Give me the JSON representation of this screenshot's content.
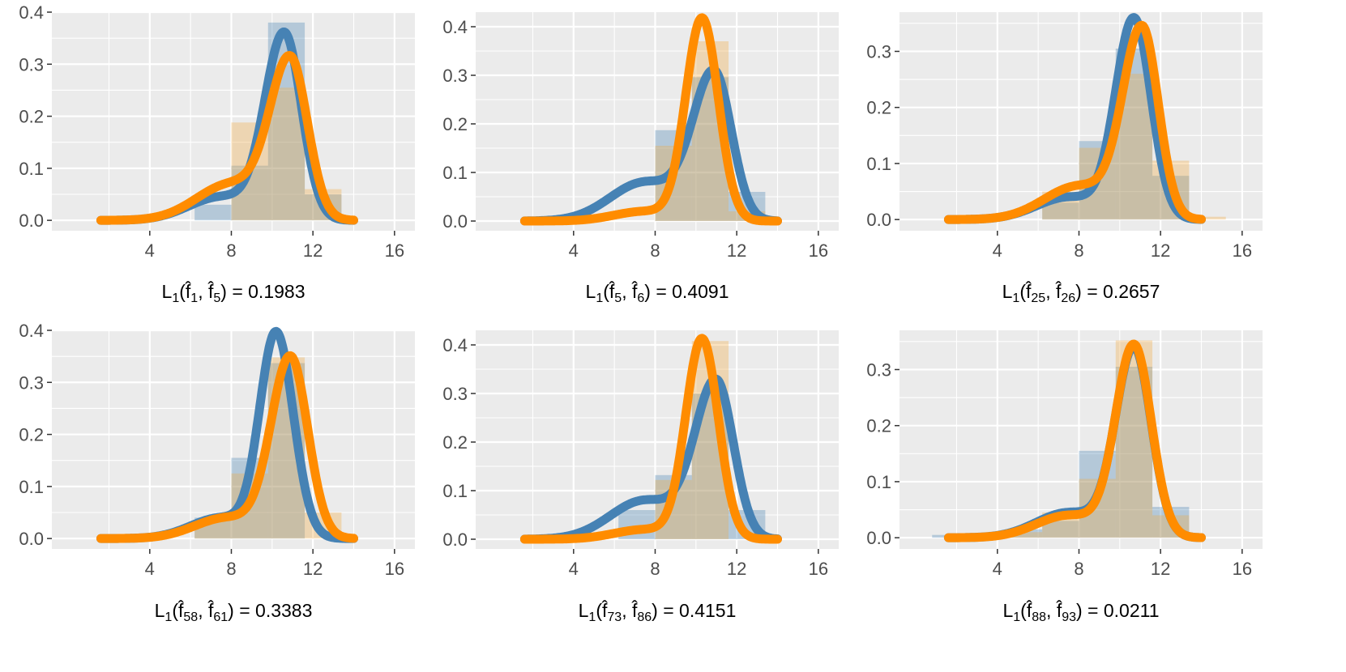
{
  "colors": {
    "blue": "#4682b4",
    "orange": "#ff8c00",
    "blue_fill": "#4682b4",
    "orange_fill": "#f4a940",
    "panel_bg": "#ebebeb",
    "grid": "#ffffff"
  },
  "chart_data": [
    {
      "type": "histogram+density",
      "xlim": [
        -0.8,
        17
      ],
      "ylim": [
        -0.02,
        0.4
      ],
      "xticks": [
        "4",
        "8",
        "12",
        "16"
      ],
      "xtick_values": [
        4,
        8,
        12,
        16
      ],
      "yticks": [
        "0.0",
        "0.1",
        "0.2",
        "0.3",
        "0.4"
      ],
      "ytick_values": [
        0,
        0.1,
        0.2,
        0.3,
        0.4
      ],
      "caption": {
        "prefix": "L",
        "prefix_sub": "1",
        "a": "f",
        "a_sub": "1",
        "b": "f",
        "b_sub": "5",
        "value": "0.1983"
      },
      "bins": [
        6.2,
        8.0,
        9.8,
        11.6,
        13.4
      ],
      "series": [
        {
          "name": "blue",
          "heights": [
            0.03,
            0.105,
            0.38,
            0.05
          ],
          "density": {
            "mode": 10.6,
            "peak": 0.355,
            "sd_left": 0.95,
            "sd_right": 0.85,
            "tail_weight": 0.045,
            "tail_mean": 7.5,
            "tail_sd": 1.6
          }
        },
        {
          "name": "orange",
          "heights": [
            0.0,
            0.188,
            0.255,
            0.06
          ],
          "density": {
            "mode": 10.9,
            "peak": 0.3,
            "sd_left": 1.0,
            "sd_right": 0.85,
            "tail_weight": 0.07,
            "tail_mean": 8.0,
            "tail_sd": 1.7
          }
        }
      ]
    },
    {
      "type": "histogram+density",
      "xlim": [
        -0.8,
        17
      ],
      "ylim": [
        -0.02,
        0.43
      ],
      "xticks": [
        "4",
        "8",
        "12",
        "16"
      ],
      "xtick_values": [
        4,
        8,
        12,
        16
      ],
      "yticks": [
        "0.0",
        "0.1",
        "0.2",
        "0.3",
        "0.4"
      ],
      "ytick_values": [
        0,
        0.1,
        0.2,
        0.3,
        0.4
      ],
      "caption": {
        "prefix": "L",
        "prefix_sub": "1",
        "a": "f",
        "a_sub": "5",
        "b": "f",
        "b_sub": "6",
        "value": "0.4091"
      },
      "bins": [
        6.2,
        8.0,
        9.8,
        11.6,
        13.4
      ],
      "series": [
        {
          "name": "blue",
          "heights": [
            0.0,
            0.187,
            0.296,
            0.06
          ],
          "density": {
            "mode": 10.9,
            "peak": 0.3,
            "sd_left": 1.05,
            "sd_right": 0.85,
            "tail_weight": 0.08,
            "tail_mean": 7.5,
            "tail_sd": 1.7
          }
        },
        {
          "name": "orange",
          "heights": [
            0.0,
            0.155,
            0.37,
            0.02
          ],
          "density": {
            "mode": 10.3,
            "peak": 0.415,
            "sd_left": 0.8,
            "sd_right": 0.8,
            "tail_weight": 0.02,
            "tail_mean": 7.5,
            "tail_sd": 1.5
          }
        }
      ]
    },
    {
      "type": "histogram+density",
      "xlim": [
        -0.8,
        17
      ],
      "ylim": [
        -0.02,
        0.37
      ],
      "xticks": [
        "4",
        "8",
        "12",
        "16"
      ],
      "xtick_values": [
        4,
        8,
        12,
        16
      ],
      "yticks": [
        "0.0",
        "0.1",
        "0.2",
        "0.3"
      ],
      "ytick_values": [
        0,
        0.1,
        0.2,
        0.3
      ],
      "caption": {
        "prefix": "L",
        "prefix_sub": "1",
        "a": "f",
        "a_sub": "25",
        "b": "f",
        "b_sub": "26",
        "value": "0.2657"
      },
      "bins": [
        6.2,
        8.0,
        9.8,
        11.6,
        13.4,
        15.2
      ],
      "series": [
        {
          "name": "blue",
          "heights": [
            0.03,
            0.14,
            0.305,
            0.078,
            0.0
          ],
          "density": {
            "mode": 10.7,
            "peak": 0.355,
            "sd_left": 0.9,
            "sd_right": 0.85,
            "tail_weight": 0.04,
            "tail_mean": 7.5,
            "tail_sd": 1.6
          }
        },
        {
          "name": "orange",
          "heights": [
            0.05,
            0.128,
            0.26,
            0.105,
            0.005
          ],
          "density": {
            "mode": 11.1,
            "peak": 0.335,
            "sd_left": 0.95,
            "sd_right": 0.8,
            "tail_weight": 0.06,
            "tail_mean": 8.0,
            "tail_sd": 1.7
          }
        }
      ]
    },
    {
      "type": "histogram+density",
      "xlim": [
        -0.8,
        17
      ],
      "ylim": [
        -0.02,
        0.4
      ],
      "xticks": [
        "4",
        "8",
        "12",
        "16"
      ],
      "xtick_values": [
        4,
        8,
        12,
        16
      ],
      "yticks": [
        "0.0",
        "0.1",
        "0.2",
        "0.3",
        "0.4"
      ],
      "ytick_values": [
        0,
        0.1,
        0.2,
        0.3,
        0.4
      ],
      "caption": {
        "prefix": "L",
        "prefix_sub": "1",
        "a": "f",
        "a_sub": "58",
        "b": "f",
        "b_sub": "61",
        "value": "0.3383"
      },
      "bins": [
        6.2,
        8.0,
        9.8,
        11.6,
        13.4
      ],
      "series": [
        {
          "name": "blue",
          "heights": [
            0.04,
            0.155,
            0.337,
            0.0
          ],
          "density": {
            "mode": 10.2,
            "peak": 0.39,
            "sd_left": 0.8,
            "sd_right": 0.85,
            "tail_weight": 0.04,
            "tail_mean": 7.5,
            "tail_sd": 1.5
          }
        },
        {
          "name": "orange",
          "heights": [
            0.035,
            0.125,
            0.348,
            0.05
          ],
          "density": {
            "mode": 10.9,
            "peak": 0.345,
            "sd_left": 0.95,
            "sd_right": 0.85,
            "tail_weight": 0.04,
            "tail_mean": 7.8,
            "tail_sd": 1.6
          }
        }
      ]
    },
    {
      "type": "histogram+density",
      "xlim": [
        -0.8,
        17
      ],
      "ylim": [
        -0.02,
        0.43
      ],
      "xticks": [
        "4",
        "8",
        "12",
        "16"
      ],
      "xtick_values": [
        4,
        8,
        12,
        16
      ],
      "yticks": [
        "0.0",
        "0.1",
        "0.2",
        "0.3",
        "0.4"
      ],
      "ytick_values": [
        0,
        0.1,
        0.2,
        0.3,
        0.4
      ],
      "caption": {
        "prefix": "L",
        "prefix_sub": "1",
        "a": "f",
        "a_sub": "73",
        "b": "f",
        "b_sub": "86",
        "value": "0.4151"
      },
      "bins": [
        6.2,
        8.0,
        9.8,
        11.6,
        13.4
      ],
      "series": [
        {
          "name": "blue",
          "heights": [
            0.06,
            0.132,
            0.3,
            0.06
          ],
          "density": {
            "mode": 11.0,
            "peak": 0.32,
            "sd_left": 1.05,
            "sd_right": 0.85,
            "tail_weight": 0.08,
            "tail_mean": 7.5,
            "tail_sd": 1.7
          }
        },
        {
          "name": "orange",
          "heights": [
            0.0,
            0.122,
            0.408,
            0.0
          ],
          "density": {
            "mode": 10.3,
            "peak": 0.41,
            "sd_left": 0.8,
            "sd_right": 0.8,
            "tail_weight": 0.02,
            "tail_mean": 7.5,
            "tail_sd": 1.5
          }
        }
      ]
    },
    {
      "type": "histogram+density",
      "xlim": [
        -0.8,
        17
      ],
      "ylim": [
        -0.02,
        0.37
      ],
      "xticks": [
        "4",
        "8",
        "12",
        "16"
      ],
      "xtick_values": [
        4,
        8,
        12,
        16
      ],
      "yticks": [
        "0.0",
        "0.1",
        "0.2",
        "0.3"
      ],
      "ytick_values": [
        0,
        0.1,
        0.2,
        0.3
      ],
      "caption": {
        "prefix": "L",
        "prefix_sub": "1",
        "a": "f",
        "a_sub": "88",
        "b": "f",
        "b_sub": "93",
        "value": "0.0211"
      },
      "bins": [
        0.8,
        2.6,
        4.4,
        6.2,
        8.0,
        9.8,
        11.6,
        13.4
      ],
      "series": [
        {
          "name": "blue",
          "heights": [
            0.005,
            0.0,
            0.015,
            0.03,
            0.155,
            0.305,
            0.055
          ],
          "density": {
            "mode": 10.7,
            "peak": 0.335,
            "sd_left": 0.9,
            "sd_right": 0.85,
            "tail_weight": 0.045,
            "tail_mean": 7.5,
            "tail_sd": 1.6
          }
        },
        {
          "name": "orange",
          "heights": [
            0.0,
            0.0,
            0.01,
            0.045,
            0.105,
            0.352,
            0.04
          ],
          "density": {
            "mode": 10.7,
            "peak": 0.34,
            "sd_left": 0.9,
            "sd_right": 0.85,
            "tail_weight": 0.04,
            "tail_mean": 7.5,
            "tail_sd": 1.6
          }
        }
      ]
    }
  ]
}
